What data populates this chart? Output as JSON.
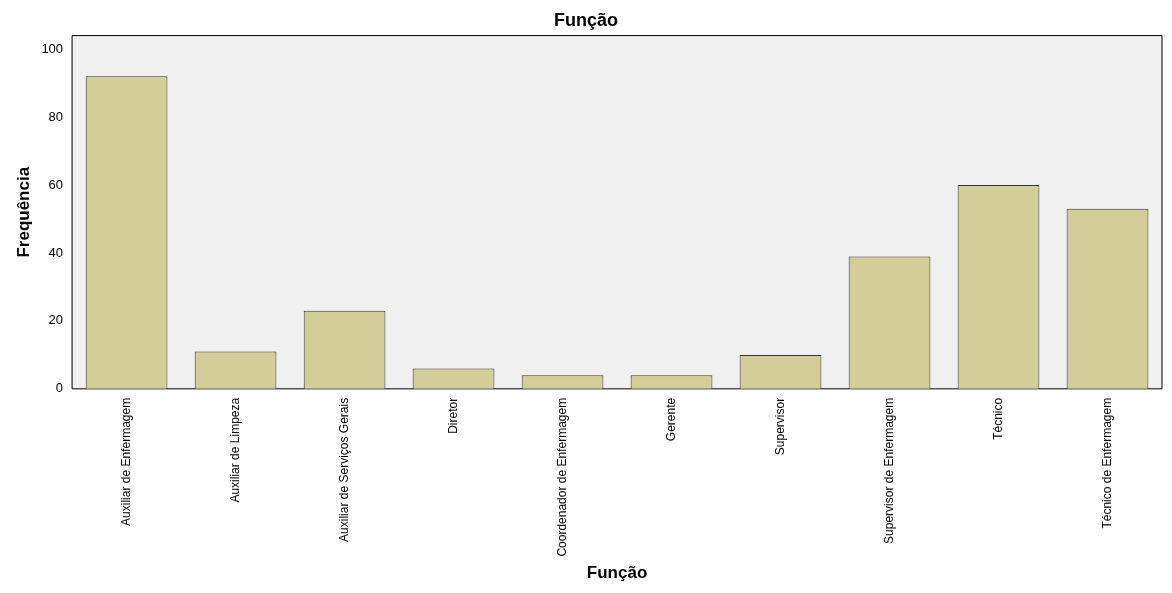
{
  "chart_data": {
    "type": "bar",
    "title": "Função",
    "xlabel": "Função",
    "ylabel": "Frequência",
    "categories": [
      "Auxiliar de Enfermagem",
      "Auxiliar de Limpeza",
      "Auxiliar de Serviços Gerais",
      "Diretor",
      "Coordenador de Enfermagem",
      "Gerente",
      "Supervisor",
      "Supervisor de Enfermagem",
      "Técnico",
      "Técnico de Enfermagem"
    ],
    "values": [
      92,
      11,
      23,
      6,
      4,
      4,
      10,
      39,
      60,
      53
    ],
    "color": "#d3ce97",
    "ylim": [
      0,
      104
    ],
    "yticks": [
      0,
      20,
      40,
      60,
      80,
      100
    ],
    "grid": false,
    "legend": false
  }
}
